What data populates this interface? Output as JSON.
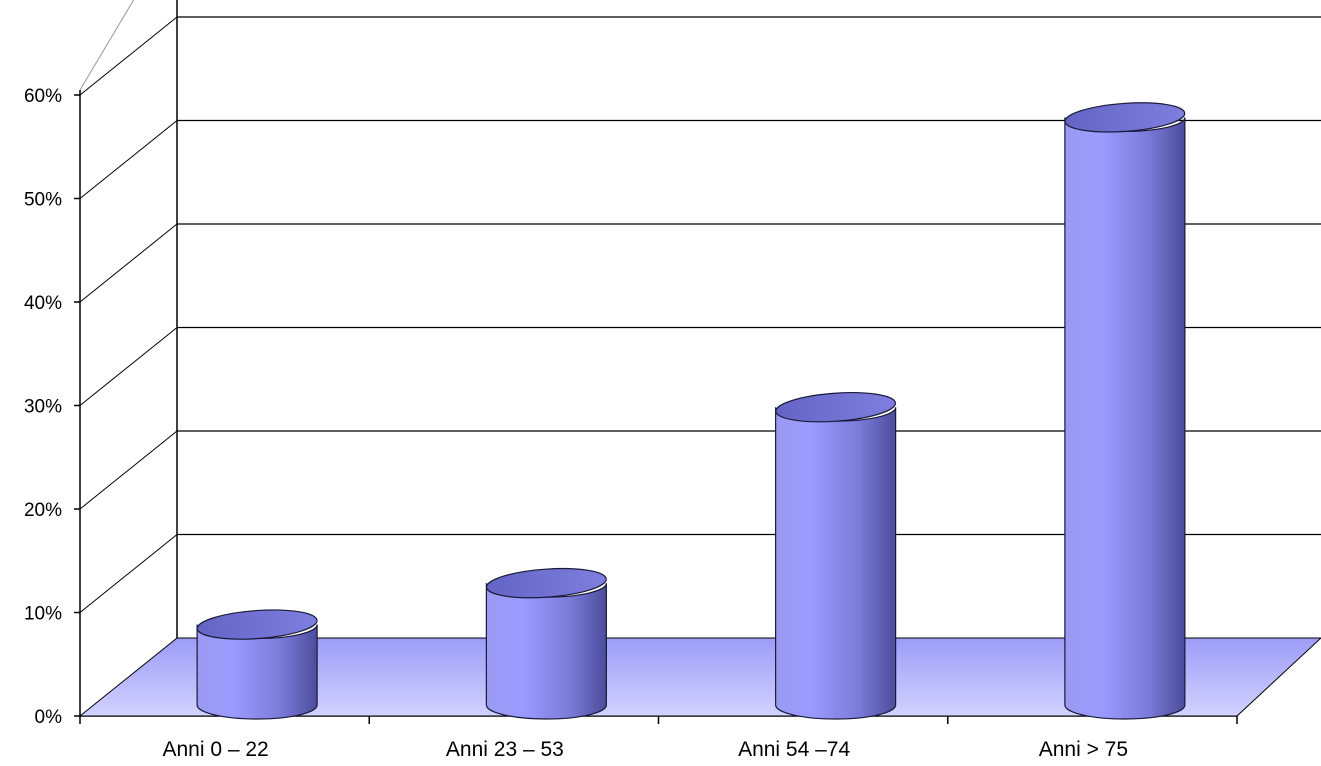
{
  "chart_data": {
    "type": "bar",
    "style": "3d-cylinder",
    "categories": [
      "Anni 0 – 22",
      "Anni 23 – 53",
      "Anni 54 –74",
      "Anni > 75"
    ],
    "values": [
      7,
      11,
      28,
      56
    ],
    "unit": "%",
    "ylim": [
      0,
      60
    ],
    "yticks": [
      "0%",
      "10%",
      "20%",
      "30%",
      "40%",
      "50%",
      "60%"
    ],
    "grid": true,
    "legend": "none",
    "title": "",
    "xlabel": "",
    "ylabel": "",
    "colors": {
      "bar_light": "#a8a8ff",
      "bar_mid": "#8080e6",
      "bar_dark": "#4a4a9a",
      "bar_top": "#7272d6",
      "floor": "#b0b0ff",
      "gridline": "#000000"
    }
  }
}
